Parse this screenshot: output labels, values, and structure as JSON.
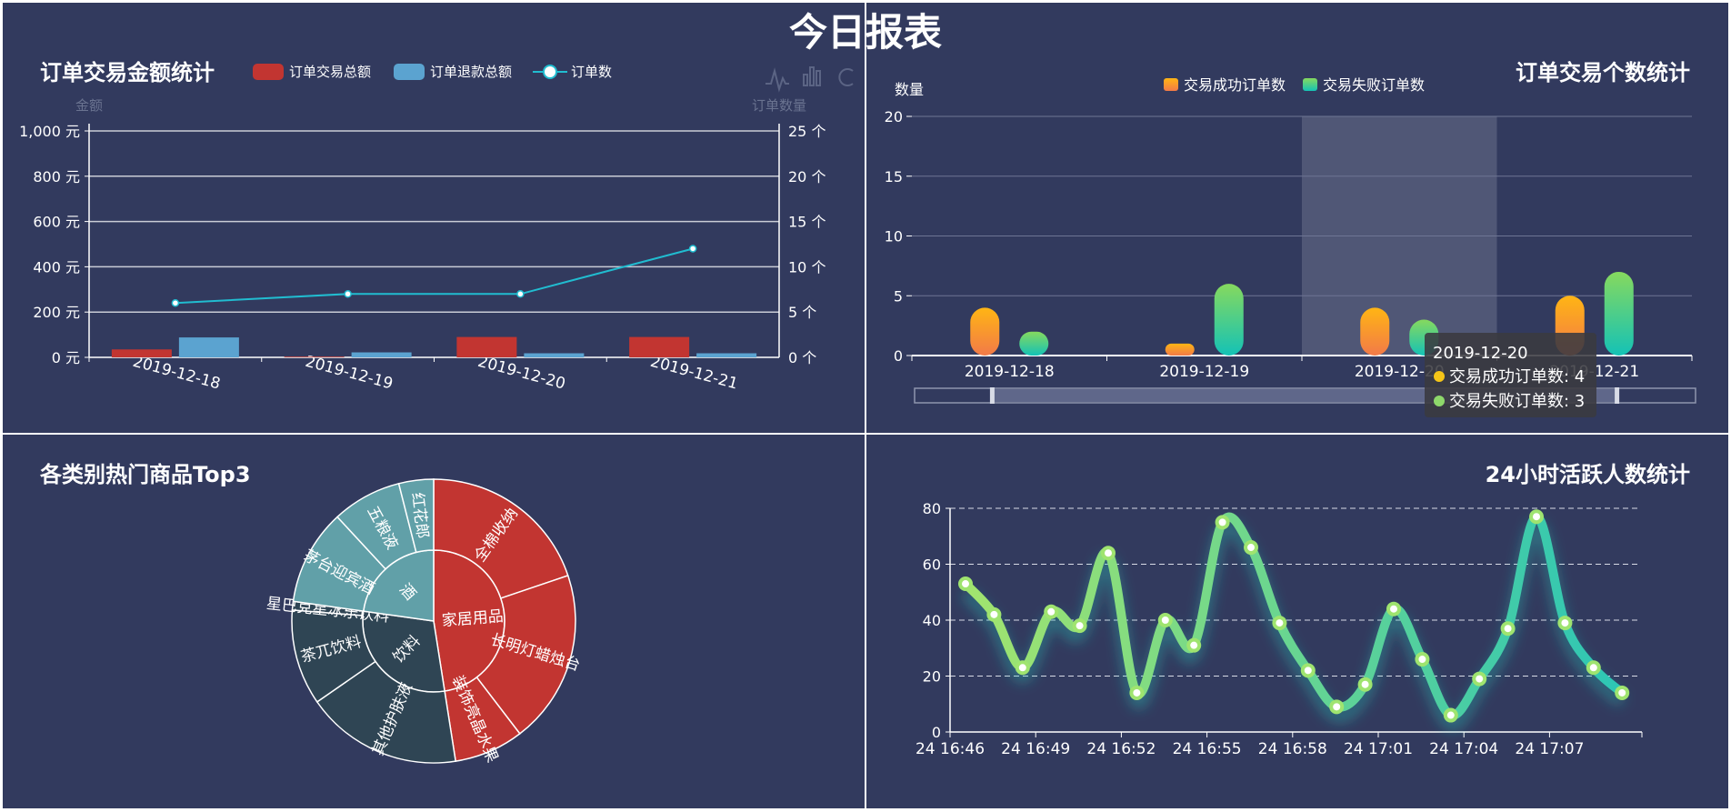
{
  "page": {
    "title": "今日报表",
    "background": "#323a5e",
    "divider": "#ffffff"
  },
  "panels": {
    "amount": {
      "title": "订单交易金额统计",
      "tools": [
        "line-chart-icon",
        "bar-chart-icon",
        "refresh-icon"
      ]
    },
    "count": {
      "title": "订单交易个数统计"
    },
    "top3": {
      "title": "各类别热门商品Top3"
    },
    "active": {
      "title": "24小时活跃人数统计"
    }
  },
  "chart_data": [
    {
      "id": "amount",
      "type": "bar",
      "categories": [
        "2019-12-18",
        "2019-12-19",
        "2019-12-20",
        "2019-12-21"
      ],
      "series": [
        {
          "name": "订单交易总额",
          "kind": "bar",
          "axis": "left",
          "color": "#c23531",
          "values": [
            35,
            3,
            90,
            90
          ]
        },
        {
          "name": "订单退款总额",
          "kind": "bar",
          "axis": "left",
          "color": "#5ba3d0",
          "values": [
            88,
            22,
            18,
            18
          ]
        },
        {
          "name": "订单数",
          "kind": "line",
          "axis": "right",
          "color": "#21bcd0",
          "values": [
            6,
            7,
            7,
            12
          ]
        }
      ],
      "y_left": {
        "name": "金额",
        "min": 0,
        "max": 1000,
        "ticks": [
          0,
          200,
          400,
          600,
          800,
          1000
        ],
        "tick_labels": [
          "0 元",
          "200 元",
          "400 元",
          "600 元",
          "800 元",
          "1,000 元"
        ]
      },
      "y_right": {
        "name": "订单数量",
        "min": 0,
        "max": 25,
        "ticks": [
          0,
          5,
          10,
          15,
          20,
          25
        ],
        "tick_labels": [
          "0 个",
          "5 个",
          "10 个",
          "15 个",
          "20 个",
          "25 个"
        ]
      },
      "legend_position": "top",
      "grid": true
    },
    {
      "id": "count",
      "type": "bar",
      "categories": [
        "2019-12-18",
        "2019-12-19",
        "2019-12-20",
        "2019-12-21"
      ],
      "series": [
        {
          "name": "交易成功订单数",
          "color": "#f5a623",
          "values": [
            4,
            1,
            4,
            5
          ]
        },
        {
          "name": "交易失败订单数",
          "color": "#2fc4a8",
          "values": [
            2,
            6,
            3,
            7
          ]
        }
      ],
      "y": {
        "name": "数量",
        "min": 0,
        "max": 20,
        "ticks": [
          0,
          5,
          10,
          15,
          20
        ]
      },
      "highlighted_category": "2019-12-20",
      "legend_position": "top-center",
      "grid": true,
      "datazoom": {
        "start": 0.1,
        "end": 0.9
      },
      "tooltip": {
        "title": "2019-12-20",
        "items": [
          {
            "label": "交易成功订单数: 4",
            "color": "#f5c518"
          },
          {
            "label": "交易失败订单数: 3",
            "color": "#8ed86b"
          }
        ]
      }
    },
    {
      "id": "top3",
      "type": "sunburst",
      "categories": [
        {
          "name": "家居用品",
          "color": "#c23531",
          "children": [
            {
              "name": "全棉收纳",
              "value": 1
            },
            {
              "name": "长明灯蜡烛台",
              "value": 1
            },
            {
              "name": "装饰亮晶水果",
              "value": 0.4
            }
          ]
        },
        {
          "name": "饮料",
          "color": "#2f4554",
          "children": [
            {
              "name": "其他护肤液",
              "value": 0.9
            },
            {
              "name": "茶兀饮料",
              "value": 0.55
            },
            {
              "name": "星巴克星冰乐饮料",
              "value": 0.05
            }
          ]
        },
        {
          "name": "酒",
          "color": "#61a0a8",
          "children": [
            {
              "name": "茅台迎宾酒",
              "value": 0.55
            },
            {
              "name": "五粮液",
              "value": 0.4
            },
            {
              "name": "红花郎",
              "value": 0.2
            }
          ]
        }
      ]
    },
    {
      "id": "active",
      "type": "line",
      "x_tick_labels": [
        "24 16:46",
        "24 16:49",
        "24 16:52",
        "24 16:55",
        "24 16:58",
        "24 17:01",
        "24 17:04",
        "24 17:07"
      ],
      "values": [
        53,
        42,
        23,
        43,
        38,
        64,
        14,
        40,
        31,
        75,
        66,
        39,
        22,
        9,
        17,
        44,
        26,
        6,
        19,
        37,
        77,
        39,
        23,
        14
      ],
      "y": {
        "min": 0,
        "max": 80,
        "ticks": [
          0,
          20,
          40,
          60,
          80
        ]
      },
      "grid": "dashed",
      "colors": {
        "start": "#9fe46f",
        "end": "#30c4b5"
      }
    }
  ]
}
